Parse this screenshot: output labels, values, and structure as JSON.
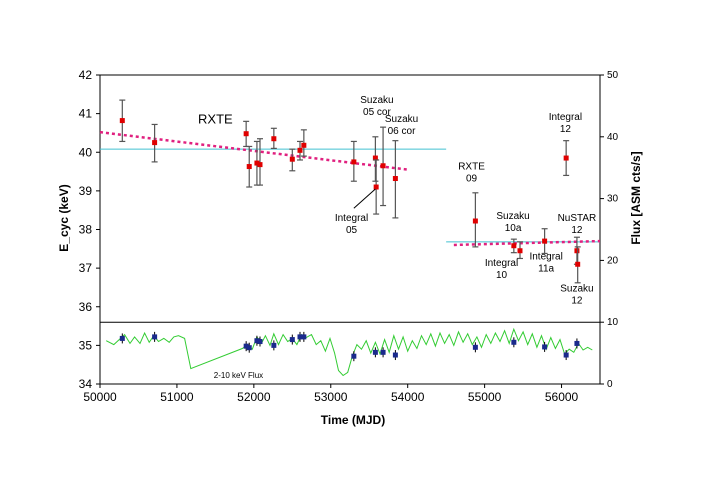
{
  "chart_data": {
    "type": "scatter",
    "xlabel": "Time  (MJD)",
    "ylabel_left": "E_cyc (keV)",
    "ylabel_right": "Flux [ASM cts/s]",
    "xlim": [
      50000,
      56500
    ],
    "ylim_left": [
      34,
      42
    ],
    "ylim_right": [
      0,
      50
    ],
    "x_ticks": [
      50000,
      51000,
      52000,
      53000,
      54000,
      55000,
      56000
    ],
    "y_left_ticks": [
      34,
      35,
      36,
      37,
      38,
      39,
      40,
      41,
      42
    ],
    "y_right_ticks": [
      0,
      10,
      20,
      30,
      40,
      50
    ],
    "colors": {
      "ecyc_marker": "#e00000",
      "ecyc_error": "#555555",
      "flux_marker": "#1a2a8c",
      "flux_line": "#33cc33",
      "mean_line": "#40c0d0",
      "trend_line": "#e0207f",
      "divider": "#000000"
    },
    "series": [
      {
        "name": "E_cyc",
        "points": [
          {
            "x": 50290,
            "y": 40.82,
            "lo": 40.28,
            "hi": 41.35
          },
          {
            "x": 50710,
            "y": 40.25,
            "lo": 39.75,
            "hi": 40.72
          },
          {
            "x": 51900,
            "y": 40.48,
            "lo": 40.15,
            "hi": 40.8
          },
          {
            "x": 51940,
            "y": 39.63,
            "lo": 39.1,
            "hi": 40.15
          },
          {
            "x": 52040,
            "y": 39.72,
            "lo": 39.15,
            "hi": 40.28
          },
          {
            "x": 52080,
            "y": 39.68,
            "lo": 39.15,
            "hi": 40.35
          },
          {
            "x": 52260,
            "y": 40.35,
            "lo": 40.1,
            "hi": 40.62
          },
          {
            "x": 52500,
            "y": 39.82,
            "lo": 39.52,
            "hi": 40.08
          },
          {
            "x": 52600,
            "y": 40.05,
            "lo": 39.8,
            "hi": 40.28
          },
          {
            "x": 52650,
            "y": 40.18,
            "lo": 39.9,
            "hi": 40.58
          },
          {
            "x": 53300,
            "y": 39.75,
            "lo": 39.25,
            "hi": 40.28
          },
          {
            "x": 53580,
            "y": 39.85,
            "lo": 39.25,
            "hi": 40.4
          },
          {
            "x": 53590,
            "y": 39.1,
            "lo": 38.4,
            "hi": 39.8
          },
          {
            "x": 53680,
            "y": 39.65,
            "lo": 38.62,
            "hi": 40.65
          },
          {
            "x": 53840,
            "y": 39.32,
            "lo": 38.3,
            "hi": 40.3
          },
          {
            "x": 54880,
            "y": 38.22,
            "lo": 37.55,
            "hi": 38.95
          },
          {
            "x": 55380,
            "y": 37.58,
            "lo": 37.4,
            "hi": 37.75
          },
          {
            "x": 55460,
            "y": 37.45,
            "lo": 37.25,
            "hi": 37.68
          },
          {
            "x": 55780,
            "y": 37.7,
            "lo": 37.38,
            "hi": 38.02
          },
          {
            "x": 56060,
            "y": 39.85,
            "lo": 39.4,
            "hi": 40.3
          },
          {
            "x": 56200,
            "y": 37.45,
            "lo": 37.1,
            "hi": 37.8
          },
          {
            "x": 56210,
            "y": 37.1,
            "lo": 36.62,
            "hi": 37.55
          }
        ]
      },
      {
        "name": "Flux points",
        "points": [
          {
            "x": 50290,
            "y": 35.18
          },
          {
            "x": 50710,
            "y": 35.22
          },
          {
            "x": 51900,
            "y": 34.98
          },
          {
            "x": 51940,
            "y": 34.94
          },
          {
            "x": 52040,
            "y": 35.12
          },
          {
            "x": 52080,
            "y": 35.1
          },
          {
            "x": 52260,
            "y": 35.0
          },
          {
            "x": 52500,
            "y": 35.15
          },
          {
            "x": 52600,
            "y": 35.22
          },
          {
            "x": 52650,
            "y": 35.22
          },
          {
            "x": 53300,
            "y": 34.72
          },
          {
            "x": 53580,
            "y": 34.82
          },
          {
            "x": 53680,
            "y": 34.82
          },
          {
            "x": 53840,
            "y": 34.75
          },
          {
            "x": 54880,
            "y": 34.95
          },
          {
            "x": 55380,
            "y": 35.08
          },
          {
            "x": 55780,
            "y": 34.96
          },
          {
            "x": 56060,
            "y": 34.75
          },
          {
            "x": 56200,
            "y": 35.05
          }
        ]
      },
      {
        "name": "2-10 keV Flux",
        "points": [
          [
            50080,
            35.12
          ],
          [
            50180,
            35.02
          ],
          [
            50250,
            35.15
          ],
          [
            50320,
            35.28
          ],
          [
            50390,
            35.05
          ],
          [
            50450,
            35.22
          ],
          [
            50520,
            35.05
          ],
          [
            50580,
            35.32
          ],
          [
            50640,
            35.08
          ],
          [
            50700,
            35.25
          ],
          [
            50760,
            35.1
          ],
          [
            50830,
            35.18
          ],
          [
            50900,
            35.08
          ],
          [
            50960,
            35.22
          ],
          [
            51020,
            35.25
          ],
          [
            51100,
            35.18
          ],
          [
            51180,
            34.4
          ],
          [
            51850,
            34.92
          ],
          [
            51920,
            35.02
          ],
          [
            51980,
            34.9
          ],
          [
            52040,
            35.22
          ],
          [
            52100,
            35.05
          ],
          [
            52150,
            35.25
          ],
          [
            52210,
            35.0
          ],
          [
            52260,
            35.3
          ],
          [
            52320,
            35.02
          ],
          [
            52380,
            35.28
          ],
          [
            52440,
            35.1
          ],
          [
            52500,
            35.18
          ],
          [
            52560,
            35.02
          ],
          [
            52620,
            35.28
          ],
          [
            52680,
            35.2
          ],
          [
            52750,
            35.28
          ],
          [
            52810,
            35.02
          ],
          [
            52870,
            35.12
          ],
          [
            52930,
            34.85
          ],
          [
            52990,
            35.18
          ],
          [
            53050,
            34.8
          ],
          [
            53100,
            34.35
          ],
          [
            53160,
            34.22
          ],
          [
            53220,
            34.3
          ],
          [
            53280,
            34.72
          ],
          [
            53340,
            35.02
          ],
          [
            53400,
            34.9
          ],
          [
            53460,
            35.12
          ],
          [
            53520,
            34.8
          ],
          [
            53580,
            35.08
          ],
          [
            53640,
            34.78
          ],
          [
            53700,
            35.15
          ],
          [
            53760,
            34.82
          ],
          [
            53820,
            35.25
          ],
          [
            53880,
            34.9
          ],
          [
            53940,
            35.22
          ],
          [
            54000,
            34.85
          ],
          [
            54060,
            35.12
          ],
          [
            54120,
            34.92
          ],
          [
            54180,
            35.25
          ],
          [
            54240,
            35.02
          ],
          [
            54300,
            35.3
          ],
          [
            54360,
            34.98
          ],
          [
            54420,
            35.32
          ],
          [
            54480,
            35.05
          ],
          [
            54540,
            35.28
          ],
          [
            54600,
            35.0
          ],
          [
            54660,
            35.35
          ],
          [
            54720,
            35.08
          ],
          [
            54780,
            35.3
          ],
          [
            54840,
            35.02
          ],
          [
            54900,
            35.22
          ],
          [
            54960,
            34.95
          ],
          [
            55020,
            35.28
          ],
          [
            55080,
            35.05
          ],
          [
            55140,
            35.32
          ],
          [
            55200,
            35.1
          ],
          [
            55260,
            35.38
          ],
          [
            55320,
            35.05
          ],
          [
            55380,
            35.42
          ],
          [
            55440,
            35.12
          ],
          [
            55500,
            35.35
          ],
          [
            55560,
            35.02
          ],
          [
            55620,
            35.3
          ],
          [
            55680,
            34.95
          ],
          [
            55740,
            35.25
          ],
          [
            55800,
            34.9
          ],
          [
            55860,
            35.2
          ],
          [
            55920,
            34.92
          ],
          [
            55980,
            35.15
          ],
          [
            56040,
            34.78
          ],
          [
            56100,
            34.9
          ],
          [
            56160,
            34.82
          ],
          [
            56220,
            35.05
          ],
          [
            56280,
            34.88
          ],
          [
            56340,
            34.95
          ],
          [
            56400,
            34.88
          ]
        ]
      }
    ],
    "reference_lines": [
      {
        "name": "RXTE mean",
        "x": [
          50000,
          54500
        ],
        "y": 40.08
      },
      {
        "name": "late mean",
        "x": [
          54500,
          56500
        ],
        "y": 37.68
      }
    ],
    "trend_lines": [
      {
        "name": "RXTE trend",
        "x": [
          50000,
          54000
        ],
        "y": [
          40.52,
          39.55
        ]
      },
      {
        "name": "late trend",
        "x": [
          54600,
          56500
        ],
        "y": [
          37.6,
          37.7
        ]
      }
    ],
    "divider_y": 35.6,
    "annotations": [
      {
        "id": "rxte",
        "lines": [
          "RXTE"
        ],
        "x": 51500,
        "y": 40.75,
        "size": "large",
        "anchor": "middle"
      },
      {
        "id": "suzaku05",
        "lines": [
          "Suzaku",
          "05 cor"
        ],
        "x": 53600,
        "y": 41.28,
        "size": "normal",
        "anchor": "middle"
      },
      {
        "id": "suzaku06",
        "lines": [
          "Suzaku",
          "06 cor"
        ],
        "x": 53920,
        "y": 40.78,
        "size": "normal",
        "anchor": "middle"
      },
      {
        "id": "integral05",
        "lines": [
          "Integral",
          "05"
        ],
        "x": 53270,
        "y": 38.22,
        "size": "normal",
        "anchor": "middle"
      },
      {
        "id": "rxte09",
        "lines": [
          "RXTE",
          "09"
        ],
        "x": 54830,
        "y": 39.55,
        "size": "normal",
        "anchor": "middle"
      },
      {
        "id": "suzaku10a",
        "lines": [
          "Suzaku",
          "10a"
        ],
        "x": 55370,
        "y": 38.27,
        "size": "normal",
        "anchor": "middle"
      },
      {
        "id": "integral10",
        "lines": [
          "Integral",
          "10"
        ],
        "x": 55220,
        "y": 37.05,
        "size": "normal",
        "anchor": "middle"
      },
      {
        "id": "integral11a",
        "lines": [
          "Integral",
          "11a"
        ],
        "x": 55800,
        "y": 37.22,
        "size": "normal",
        "anchor": "middle"
      },
      {
        "id": "integral12",
        "lines": [
          "Integral",
          "12"
        ],
        "x": 56050,
        "y": 40.83,
        "size": "normal",
        "anchor": "middle"
      },
      {
        "id": "nustar12",
        "lines": [
          "NuSTAR",
          "12"
        ],
        "x": 56200,
        "y": 38.22,
        "size": "normal",
        "anchor": "middle"
      },
      {
        "id": "suzaku12",
        "lines": [
          "Suzaku",
          "12"
        ],
        "x": 56200,
        "y": 36.4,
        "size": "normal",
        "anchor": "middle"
      },
      {
        "id": "flux",
        "lines": [
          "2-10 keV Flux"
        ],
        "x": 51800,
        "y": 34.16,
        "size": "small",
        "anchor": "middle"
      }
    ],
    "pointer_lines": [
      {
        "id": "integral05-pointer",
        "x1": 53300,
        "y1": 38.55,
        "x2": 53580,
        "y2": 39.05
      }
    ]
  }
}
